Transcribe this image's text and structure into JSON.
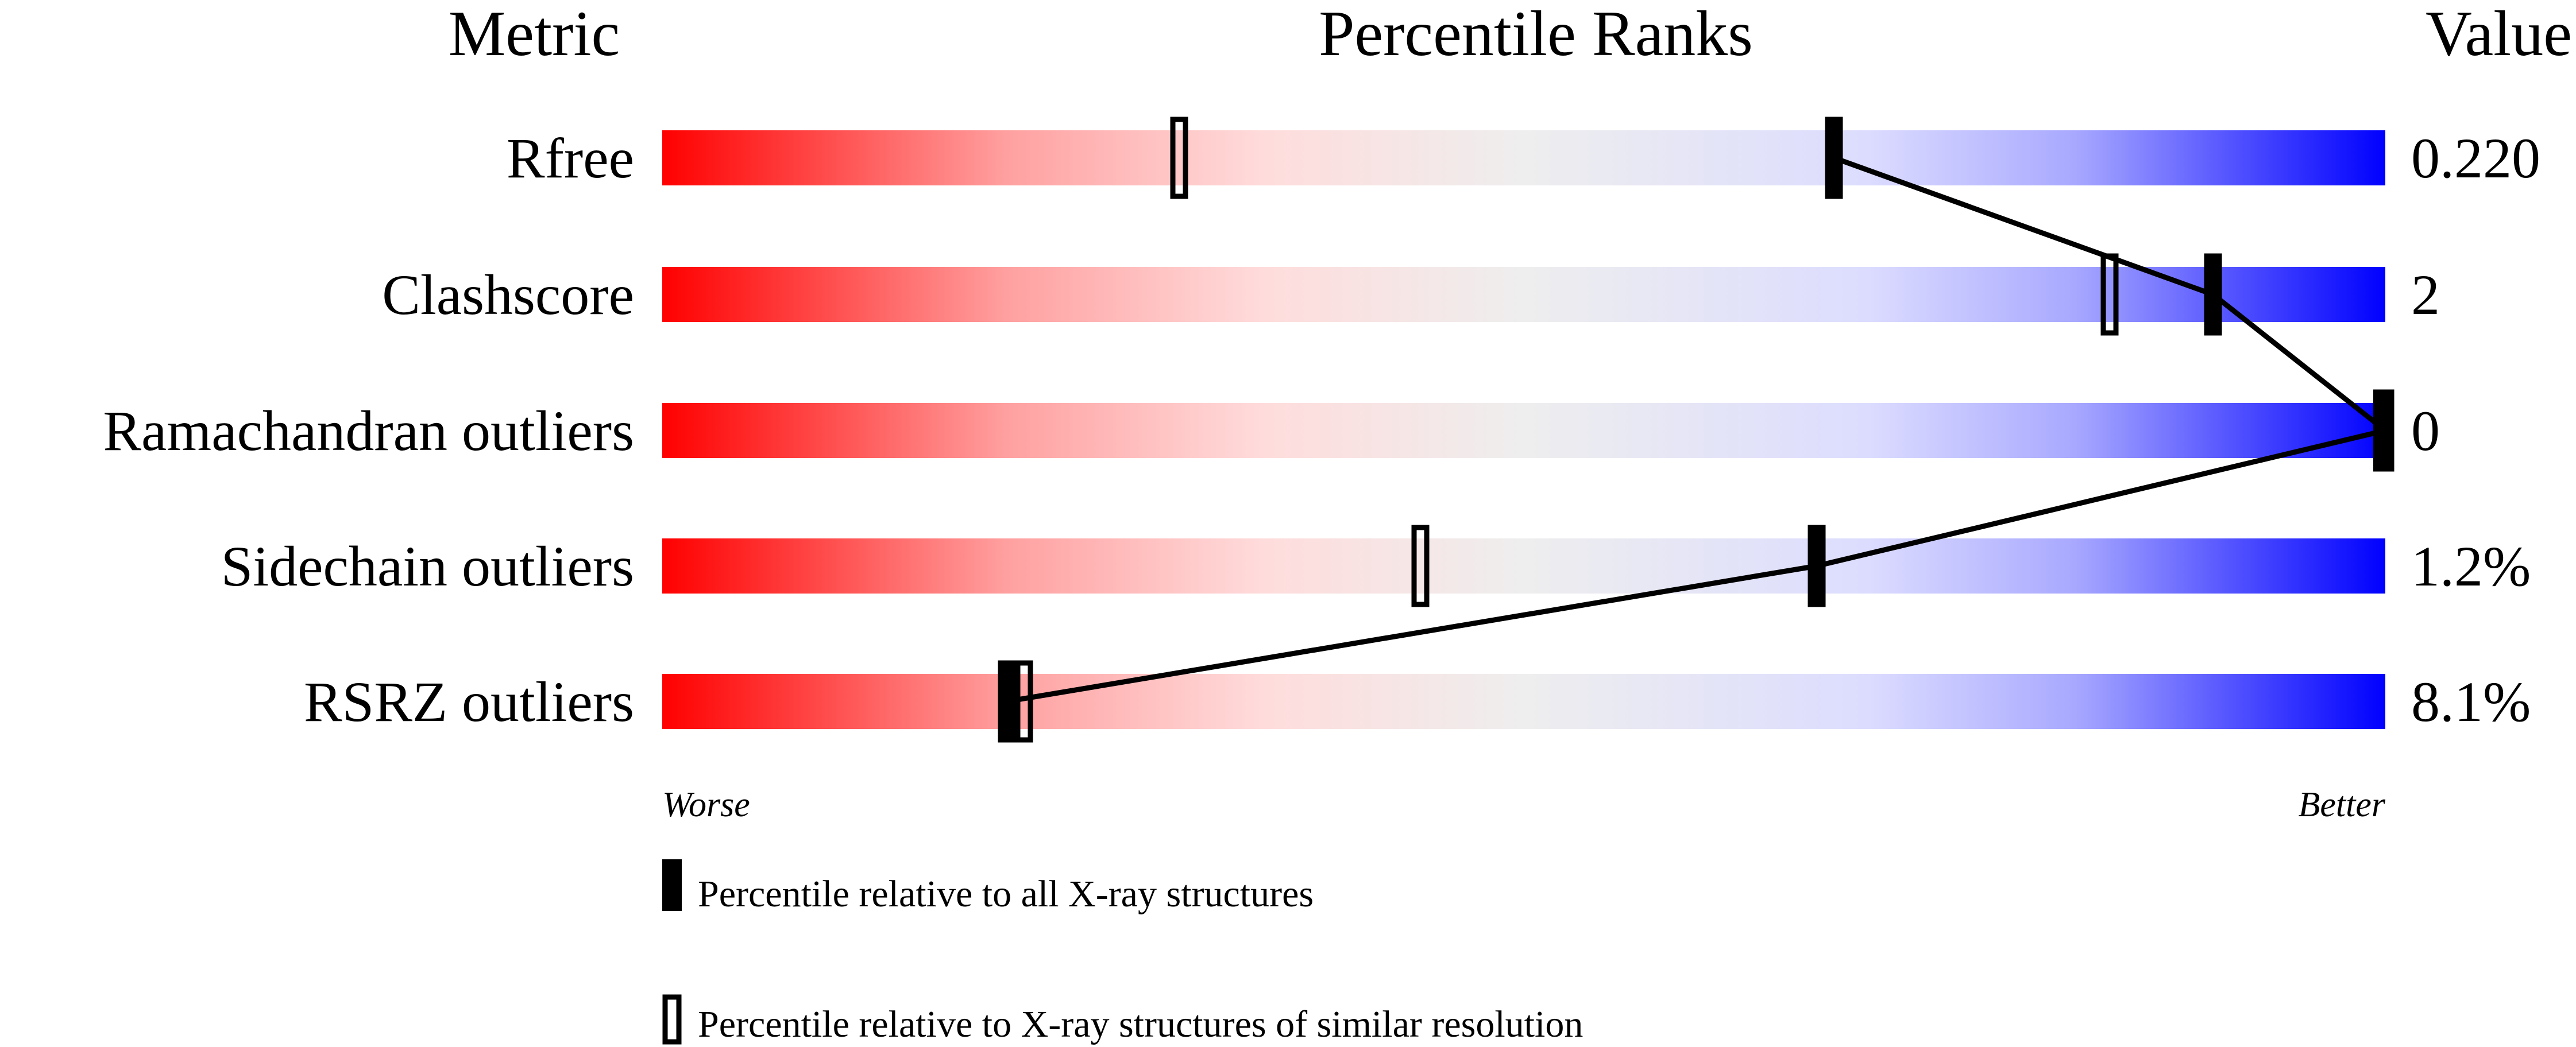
{
  "chart_data": {
    "type": "percentile-slider",
    "headers": {
      "metric": "Metric",
      "ranks": "Percentile Ranks",
      "value": "Value"
    },
    "xlim": [
      0,
      100
    ],
    "axis_labels": {
      "left": "Worse",
      "right": "Better"
    },
    "gradient_colors": [
      "#ff0000",
      "#eeeeee",
      "#0000ff"
    ],
    "rows": [
      {
        "metric": "Rfree",
        "value": "0.220",
        "percentile_all": 68,
        "percentile_similar": 30
      },
      {
        "metric": "Clashscore",
        "value": "2",
        "percentile_all": 90,
        "percentile_similar": 84
      },
      {
        "metric": "Ramachandran outliers",
        "value": "0",
        "percentile_all": 100,
        "percentile_similar": 100
      },
      {
        "metric": "Sidechain outliers",
        "value": "1.2%",
        "percentile_all": 67,
        "percentile_similar": 44
      },
      {
        "metric": "RSRZ outliers",
        "value": "8.1%",
        "percentile_all": 20,
        "percentile_similar": 21
      }
    ],
    "legend": {
      "all": "Percentile relative to all X-ray structures",
      "similar": "Percentile relative to X-ray structures of similar resolution"
    }
  }
}
